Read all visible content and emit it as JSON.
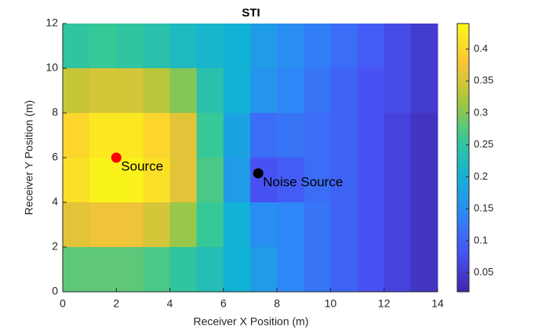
{
  "chart_data": {
    "type": "heatmap",
    "title": "STI",
    "x_label": "Receiver X Position (m)",
    "y_label": "Receiver Y Position (m)",
    "x": [
      0.5,
      1.5,
      2.5,
      3.5,
      4.5,
      5.5,
      6.5,
      7.5,
      8.5,
      9.5,
      10.5,
      11.5,
      12.5,
      13.5
    ],
    "y": [
      11,
      9,
      7,
      5,
      3,
      1
    ],
    "z": [
      [
        0.25,
        0.26,
        0.25,
        0.24,
        0.22,
        0.21,
        0.2,
        0.17,
        0.15,
        0.13,
        0.11,
        0.09,
        0.07,
        0.05
      ],
      [
        0.34,
        0.35,
        0.35,
        0.33,
        0.3,
        0.24,
        0.2,
        0.16,
        0.14,
        0.12,
        0.1,
        0.08,
        0.07,
        0.05
      ],
      [
        0.4,
        0.42,
        0.42,
        0.4,
        0.36,
        0.26,
        0.18,
        0.11,
        0.12,
        0.11,
        0.1,
        0.08,
        0.06,
        0.04
      ],
      [
        0.41,
        0.43,
        0.43,
        0.41,
        0.36,
        0.27,
        0.17,
        0.08,
        0.09,
        0.11,
        0.1,
        0.08,
        0.06,
        0.04
      ],
      [
        0.36,
        0.37,
        0.37,
        0.35,
        0.31,
        0.26,
        0.2,
        0.15,
        0.14,
        0.12,
        0.1,
        0.08,
        0.06,
        0.04
      ],
      [
        0.28,
        0.28,
        0.28,
        0.27,
        0.25,
        0.23,
        0.2,
        0.17,
        0.14,
        0.12,
        0.1,
        0.08,
        0.06,
        0.04
      ]
    ],
    "xlim": [
      0,
      14
    ],
    "xticks": [
      0,
      2,
      4,
      6,
      8,
      10,
      12,
      14
    ],
    "ylim": [
      0,
      12
    ],
    "yticks": [
      0,
      2,
      4,
      6,
      8,
      10,
      12
    ],
    "clim": [
      0.02,
      0.44
    ],
    "cticks": [
      0.05,
      0.1,
      0.15,
      0.2,
      0.25,
      0.3,
      0.35,
      0.4
    ],
    "colormap": "parula",
    "points": [
      {
        "name": "Source",
        "x": 2,
        "y": 6,
        "color": "#ff0000"
      },
      {
        "name": "Noise Source",
        "x": 7.3,
        "y": 5.3,
        "color": "#000000"
      }
    ]
  }
}
